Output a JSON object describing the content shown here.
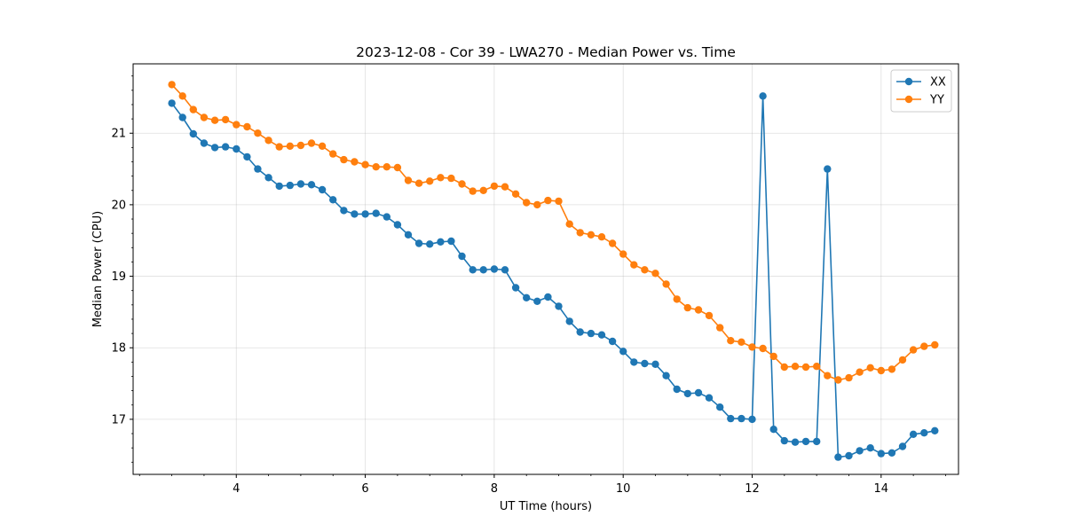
{
  "chart_data": {
    "type": "line",
    "title": "2023-12-08 - Cor 39 - LWA270 - Median Power vs. Time",
    "xlabel": "UT Time (hours)",
    "ylabel": "Median Power (CPU)",
    "xlim": [
      2.4,
      15.2
    ],
    "ylim": [
      16.23,
      21.97
    ],
    "xticks": [
      4,
      6,
      8,
      10,
      12,
      14
    ],
    "yticks": [
      17,
      18,
      19,
      20,
      21
    ],
    "grid": true,
    "legend": "upper right",
    "x": [
      3.0,
      3.167,
      3.333,
      3.5,
      3.667,
      3.833,
      4.0,
      4.167,
      4.333,
      4.5,
      4.667,
      4.833,
      5.0,
      5.167,
      5.333,
      5.5,
      5.667,
      5.833,
      6.0,
      6.167,
      6.333,
      6.5,
      6.667,
      6.833,
      7.0,
      7.167,
      7.333,
      7.5,
      7.667,
      7.833,
      8.0,
      8.167,
      8.333,
      8.5,
      8.667,
      8.833,
      9.0,
      9.167,
      9.333,
      9.5,
      9.667,
      9.833,
      10.0,
      10.167,
      10.333,
      10.5,
      10.667,
      10.833,
      11.0,
      11.167,
      11.333,
      11.5,
      11.667,
      11.833,
      12.0,
      12.167,
      12.333,
      12.5,
      12.667,
      12.833,
      13.0,
      13.167,
      13.333,
      13.5,
      13.667,
      13.833,
      14.0,
      14.167,
      14.333,
      14.5,
      14.667,
      14.833
    ],
    "series": [
      {
        "name": "XX",
        "color": "#1f77b4",
        "values": [
          21.42,
          21.22,
          20.99,
          20.86,
          20.8,
          20.81,
          20.78,
          20.67,
          20.5,
          20.38,
          20.26,
          20.27,
          20.29,
          20.28,
          20.21,
          20.07,
          19.92,
          19.87,
          19.87,
          19.88,
          19.83,
          19.72,
          19.58,
          19.46,
          19.45,
          19.48,
          19.49,
          19.28,
          19.09,
          19.09,
          19.1,
          19.09,
          18.84,
          18.7,
          18.65,
          18.71,
          18.58,
          18.37,
          18.22,
          18.2,
          18.18,
          18.09,
          17.95,
          17.8,
          17.78,
          17.77,
          17.61,
          17.42,
          17.36,
          17.37,
          17.3,
          17.17,
          17.01,
          17.01,
          17.0,
          21.52,
          16.86,
          16.7,
          16.68,
          16.69,
          16.69,
          20.5,
          16.47,
          16.49,
          16.56,
          16.6,
          16.52,
          16.53,
          16.62,
          16.79,
          16.81,
          16.84
        ]
      },
      {
        "name": "YY",
        "color": "#ff7f0e",
        "values": [
          21.68,
          21.52,
          21.33,
          21.22,
          21.18,
          21.19,
          21.12,
          21.09,
          21.0,
          20.9,
          20.81,
          20.82,
          20.83,
          20.86,
          20.82,
          20.71,
          20.63,
          20.6,
          20.56,
          20.53,
          20.53,
          20.52,
          20.34,
          20.3,
          20.33,
          20.38,
          20.37,
          20.29,
          20.19,
          20.2,
          20.26,
          20.25,
          20.15,
          20.03,
          20.0,
          20.06,
          20.05,
          19.73,
          19.61,
          19.58,
          19.55,
          19.46,
          19.31,
          19.16,
          19.09,
          19.04,
          18.89,
          18.68,
          18.56,
          18.53,
          18.45,
          18.28,
          18.1,
          18.08,
          18.01,
          17.99,
          17.88,
          17.73,
          17.74,
          17.73,
          17.74,
          17.61,
          17.55,
          17.58,
          17.66,
          17.72,
          17.68,
          17.7,
          17.83,
          17.97,
          18.02,
          18.04
        ]
      }
    ]
  }
}
